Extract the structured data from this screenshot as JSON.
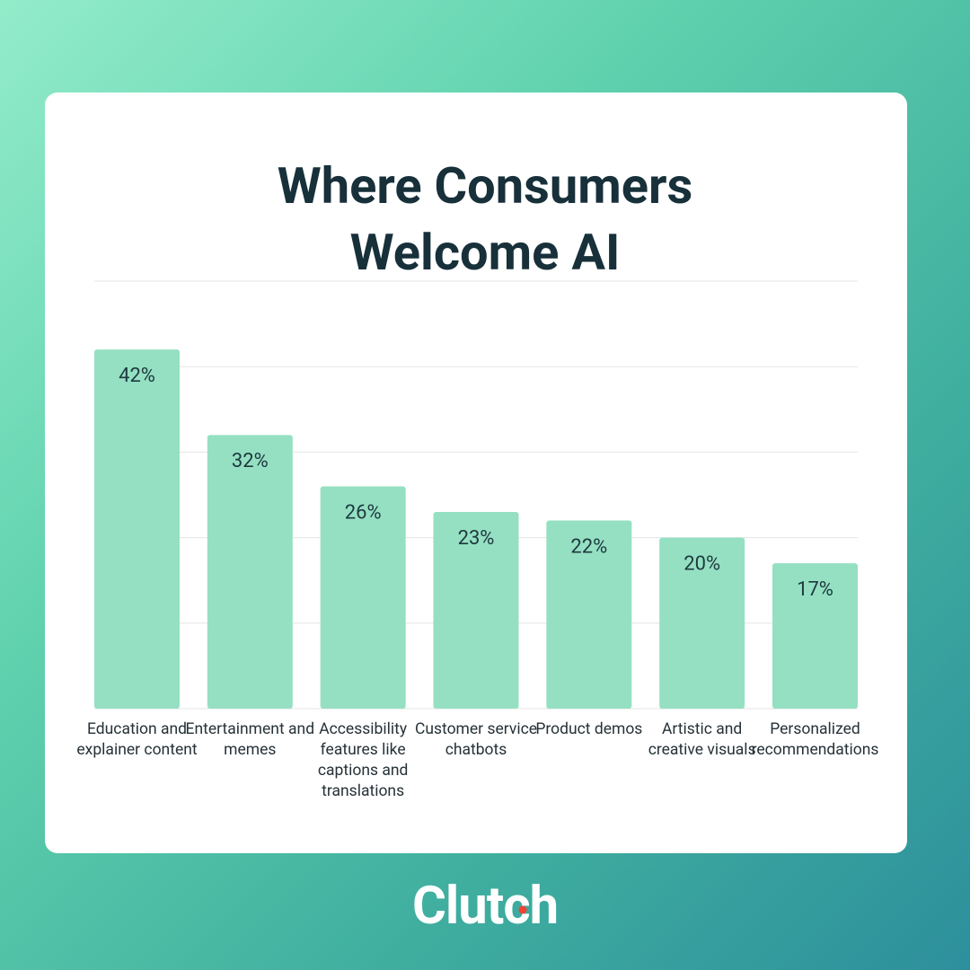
{
  "chart_data": {
    "type": "bar",
    "title": "Where Consumers Welcome AI",
    "categories": [
      "Education and explainer content",
      "Entertainment and memes",
      "Accessibility features like captions and translations",
      "Customer service chatbots",
      "Product demos",
      "Artistic and creative visuals",
      "Personalized recommendations"
    ],
    "values": [
      42,
      32,
      26,
      23,
      22,
      20,
      17
    ],
    "value_labels": [
      "42%",
      "32%",
      "26%",
      "23%",
      "22%",
      "20%",
      "17%"
    ],
    "color": "#95e0c2",
    "ylim": [
      0,
      50
    ],
    "yticks": [
      0,
      10,
      20,
      30,
      40,
      50
    ],
    "grid": true
  },
  "brand": "Clutch"
}
